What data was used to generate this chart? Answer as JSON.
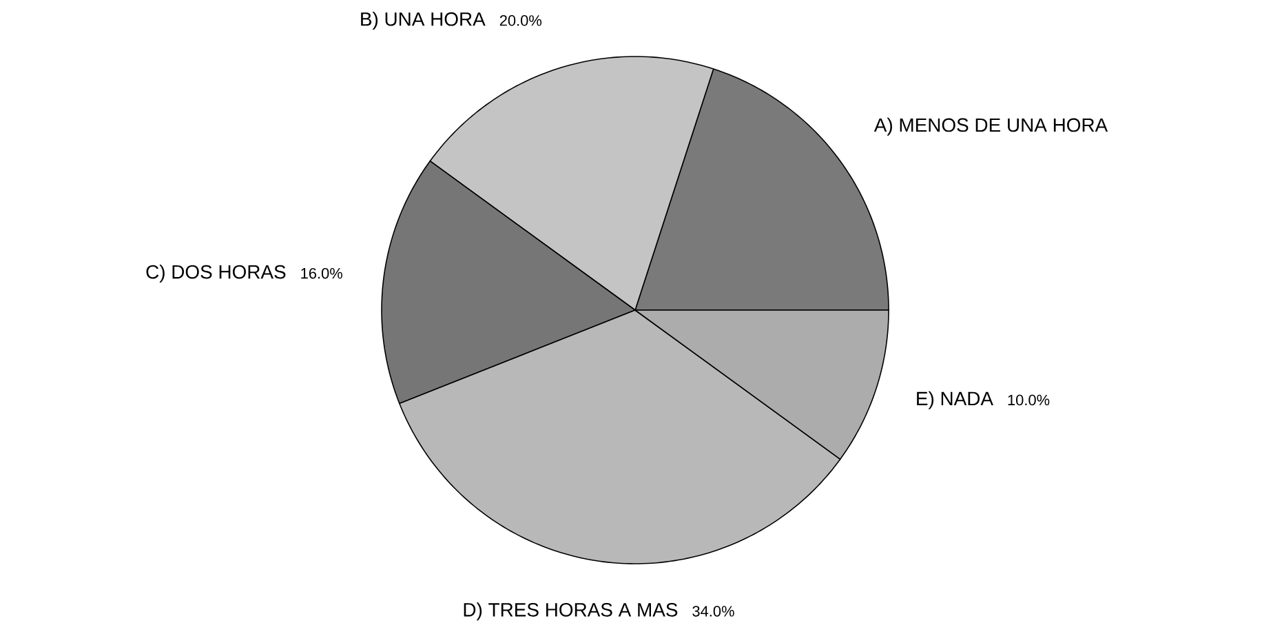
{
  "chart_data": {
    "type": "pie",
    "categories": [
      "A) MENOS DE UNA HORA",
      "B) UNA HORA",
      "C) DOS HORAS",
      "D) TRES HORAS A MAS",
      "E) NADA"
    ],
    "values": [
      20,
      20,
      16,
      34,
      10
    ],
    "value_labels": [
      null,
      "20.0%",
      "16.0%",
      "34.0%",
      "10.0%"
    ],
    "colors": [
      "#7a7a7a",
      "#c4c4c4",
      "#767676",
      "#b8b8b8",
      "#acacac"
    ]
  }
}
